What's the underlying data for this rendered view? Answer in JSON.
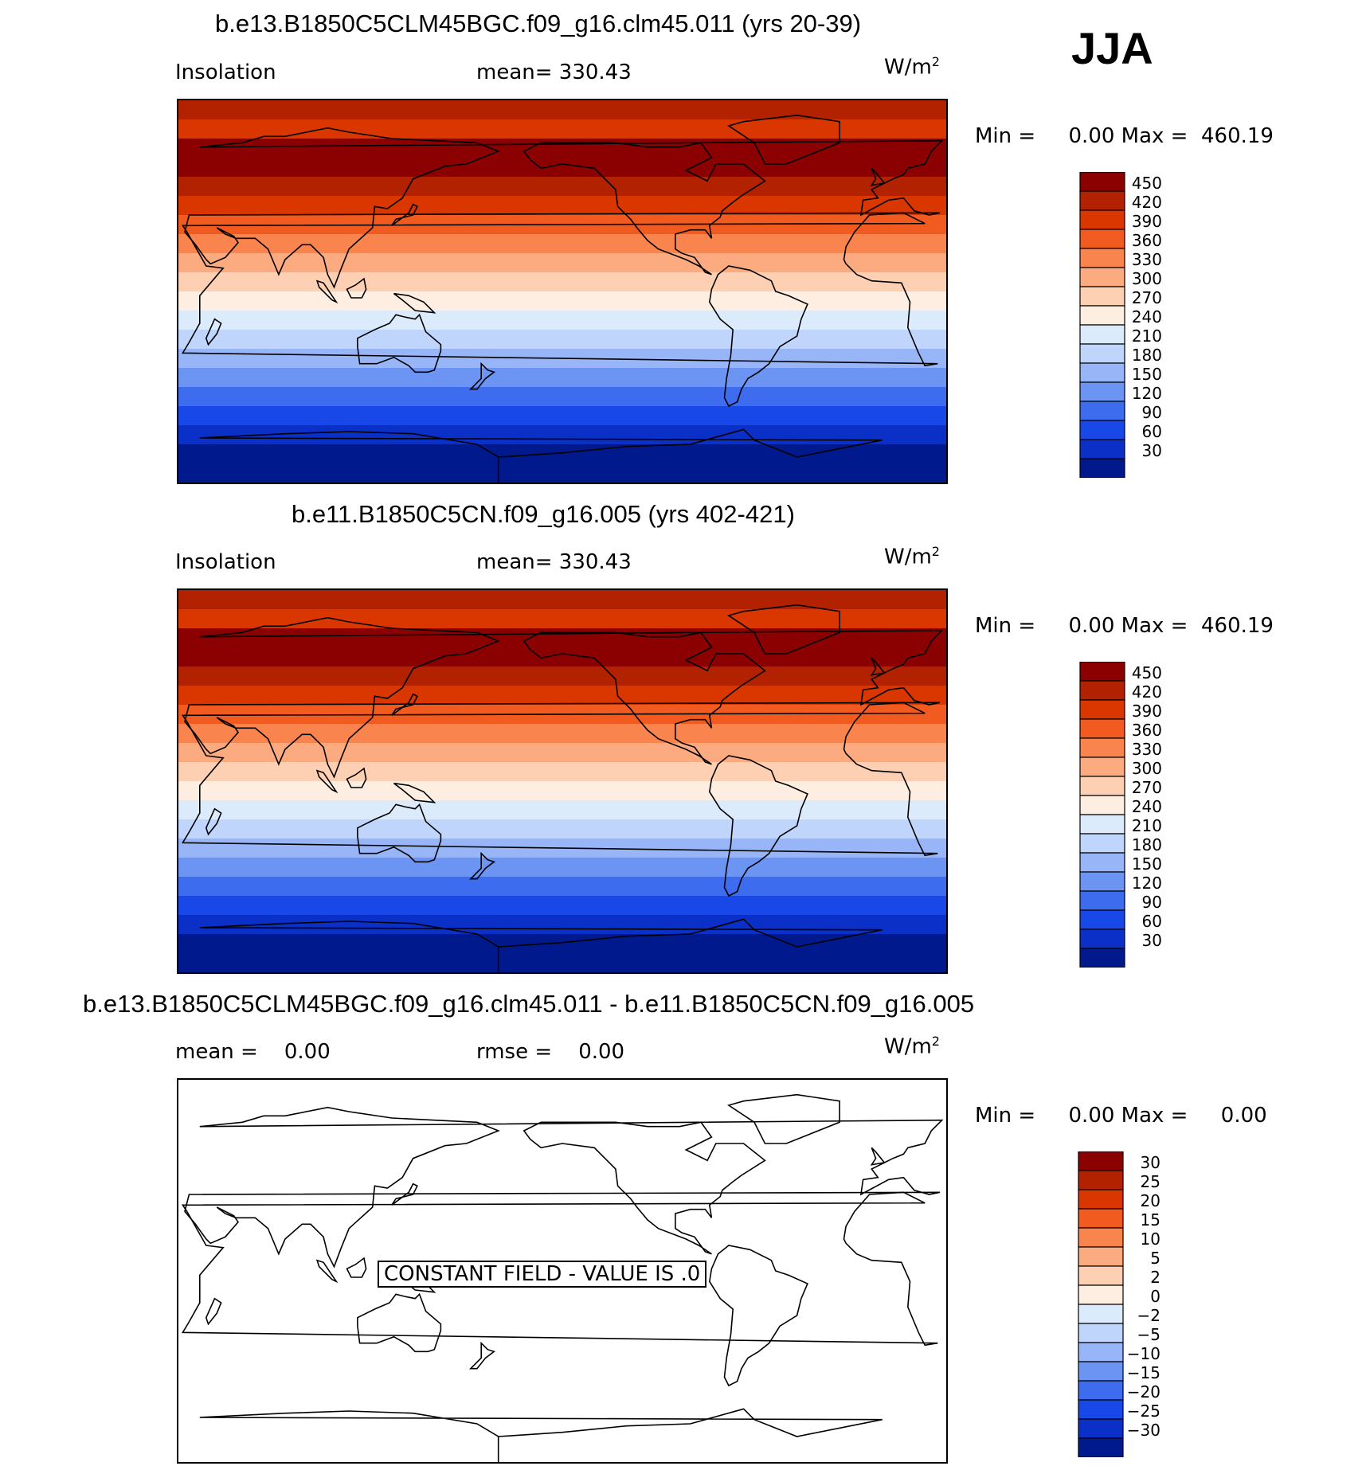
{
  "season": "JJA",
  "panels": [
    {
      "title": "b.e13.B1850C5CLM45BGC.f09_g16.clm45.011 (yrs 20-39)",
      "left_label": "Insolation",
      "center_label": "mean=  330.43",
      "units": "W/m",
      "units_sup": "2",
      "minmax": "Min =     0.00 Max =  460.19"
    },
    {
      "title": "b.e11.B1850C5CN.f09_g16.005 (yrs 402-421)",
      "left_label": "Insolation",
      "center_label": "mean=  330.43",
      "units": "W/m",
      "units_sup": "2",
      "minmax": "Min =     0.00 Max =  460.19"
    },
    {
      "title": "b.e13.B1850C5CLM45BGC.f09_g16.clm45.011 - b.e11.B1850C5CN.f09_g16.005",
      "left_label": "mean =    0.00",
      "center_label": "rmse =    0.00",
      "units": "W/m",
      "units_sup": "2",
      "minmax": "Min =     0.00 Max =     0.00",
      "note": "CONSTANT FIELD - VALUE IS .0"
    }
  ],
  "chart_data": [
    {
      "type": "heatmap",
      "title": "b.e13.B1850C5CLM45BGC.f09_g16.clm45.011 (yrs 20-39)",
      "variable": "Insolation",
      "units": "W/m2",
      "mean": 330.43,
      "min": 0.0,
      "max": 460.19,
      "colorbar_levels": [
        450,
        420,
        390,
        360,
        330,
        300,
        270,
        240,
        210,
        180,
        150,
        120,
        90,
        60,
        30
      ],
      "colorbar_colors": [
        "#8b0000",
        "#b22200",
        "#d93600",
        "#f25b20",
        "#f9844e",
        "#fcaa80",
        "#fdd0b4",
        "#fdeee1",
        "#dcebfb",
        "#bfd5fb",
        "#98b6f7",
        "#6c94f3",
        "#3e6cef",
        "#1848e8",
        "#0a30c8",
        "#001a8e"
      ],
      "latitude_bands_north_to_south": [
        440,
        415,
        455,
        458,
        430,
        400,
        370,
        345,
        315,
        290,
        255,
        225,
        195,
        165,
        135,
        105,
        75,
        45,
        15,
        0
      ],
      "grid": false
    },
    {
      "type": "heatmap",
      "title": "b.e11.B1850C5CN.f09_g16.005 (yrs 402-421)",
      "variable": "Insolation",
      "units": "W/m2",
      "mean": 330.43,
      "min": 0.0,
      "max": 460.19,
      "colorbar_levels": [
        450,
        420,
        390,
        360,
        330,
        300,
        270,
        240,
        210,
        180,
        150,
        120,
        90,
        60,
        30
      ],
      "colorbar_colors": [
        "#8b0000",
        "#b22200",
        "#d93600",
        "#f25b20",
        "#f9844e",
        "#fcaa80",
        "#fdd0b4",
        "#fdeee1",
        "#dcebfb",
        "#bfd5fb",
        "#98b6f7",
        "#6c94f3",
        "#3e6cef",
        "#1848e8",
        "#0a30c8",
        "#001a8e"
      ],
      "latitude_bands_north_to_south": [
        440,
        415,
        455,
        458,
        430,
        400,
        370,
        345,
        315,
        290,
        255,
        225,
        195,
        165,
        135,
        105,
        75,
        45,
        15,
        0
      ],
      "grid": false
    },
    {
      "type": "heatmap",
      "title": "b.e13.B1850C5CLM45BGC.f09_g16.clm45.011 - b.e11.B1850C5CN.f09_g16.005",
      "units": "W/m2",
      "mean": 0.0,
      "rmse": 0.0,
      "min": 0.0,
      "max": 0.0,
      "annotation": "CONSTANT FIELD - VALUE IS .0",
      "colorbar_levels": [
        "30",
        "25",
        "20",
        "15",
        "10",
        "5",
        "2",
        "0",
        "−2",
        "−5",
        "−10",
        "−15",
        "−20",
        "−25",
        "−30"
      ],
      "colorbar_colors": [
        "#8b0000",
        "#b22200",
        "#d93600",
        "#f25b20",
        "#f9844e",
        "#fcaa80",
        "#fdd0b4",
        "#fdeee1",
        "#dcebfb",
        "#bfd5fb",
        "#98b6f7",
        "#6c94f3",
        "#3e6cef",
        "#1848e8",
        "#0a30c8",
        "#001a8e"
      ],
      "grid": false
    }
  ]
}
